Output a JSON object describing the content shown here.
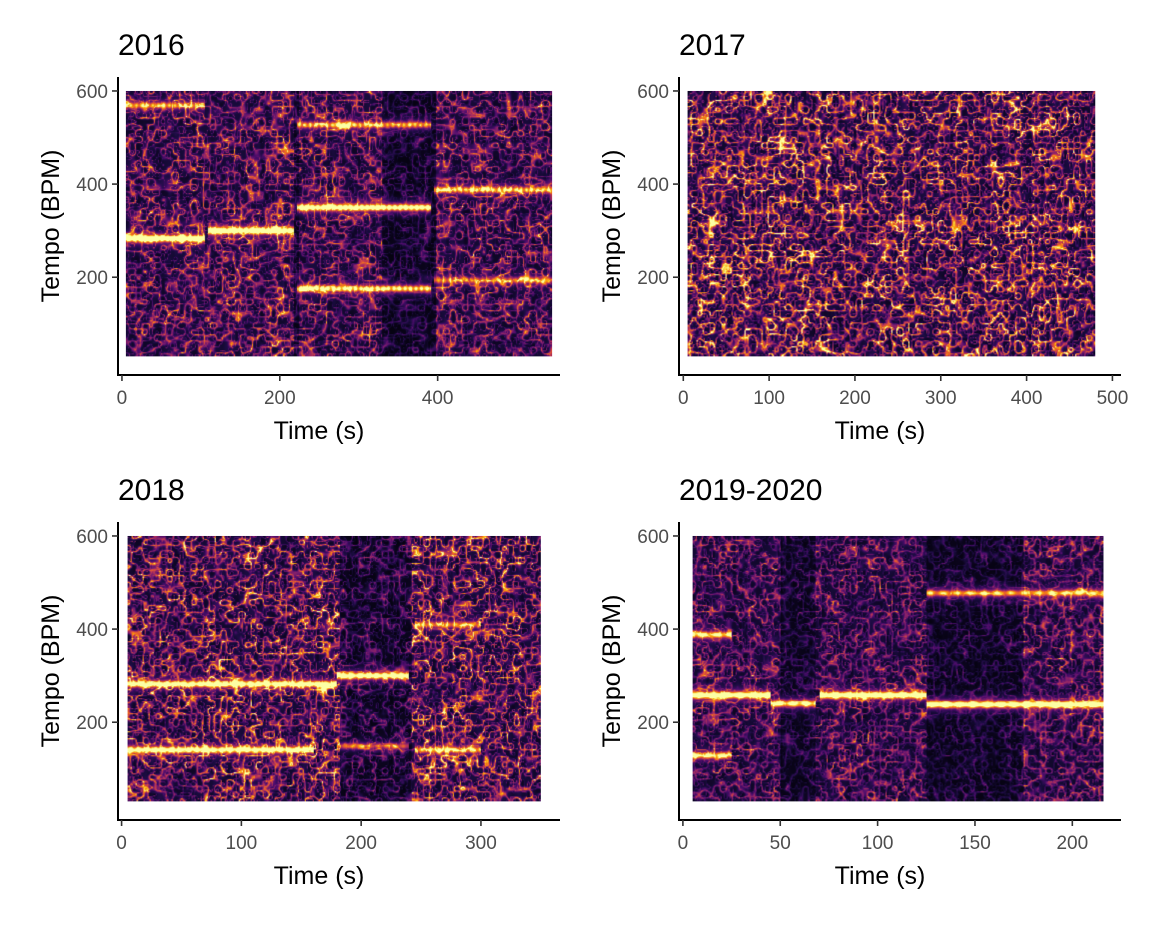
{
  "chart_data": [
    {
      "type": "heatmap",
      "title": "2016",
      "xlabel": "Time (s)",
      "ylabel": "Tempo (BPM)",
      "xlim": [
        -5,
        555
      ],
      "ylim": [
        -10,
        630
      ],
      "data_x_range": [
        5,
        545
      ],
      "data_y_range": [
        30,
        600
      ],
      "xticks": [
        0,
        200,
        400
      ],
      "yticks": [
        200,
        400,
        600
      ],
      "colormap": [
        "#000004",
        "#1b0c41",
        "#4a0c6b",
        "#781c6d",
        "#a52c60",
        "#cf4446",
        "#ed6925",
        "#fb9b06",
        "#f7d13d",
        "#fcffa4"
      ],
      "background_intensity": 0.34,
      "seed": 11,
      "segments": [
        {
          "t": [
            5,
            105
          ],
          "tempo": 283,
          "strength": 1.0
        },
        {
          "t": [
            108,
            218
          ],
          "tempo": 300,
          "strength": 1.0
        },
        {
          "t": [
            222,
            392
          ],
          "tempo": 350,
          "strength": 0.9
        },
        {
          "t": [
            222,
            392
          ],
          "tempo": 175,
          "strength": 0.7
        },
        {
          "t": [
            222,
            392
          ],
          "tempo": 528,
          "strength": 0.55
        },
        {
          "t": [
            5,
            105
          ],
          "tempo": 570,
          "strength": 0.55
        },
        {
          "t": [
            396,
            545
          ],
          "tempo": 388,
          "strength": 0.6
        },
        {
          "t": [
            396,
            545
          ],
          "tempo": 193,
          "strength": 0.45
        }
      ],
      "dark_bands": [
        [
          218,
          224
        ],
        [
          330,
          392
        ],
        [
          392,
          398
        ]
      ]
    },
    {
      "type": "heatmap",
      "title": "2017",
      "xlabel": "Time (s)",
      "ylabel": "Tempo (BPM)",
      "xlim": [
        -5,
        510
      ],
      "ylim": [
        -10,
        630
      ],
      "data_x_range": [
        5,
        480
      ],
      "data_y_range": [
        30,
        600
      ],
      "xticks": [
        0,
        100,
        200,
        300,
        400,
        500
      ],
      "yticks": [
        200,
        400,
        600
      ],
      "colormap": [
        "#000004",
        "#1b0c41",
        "#4a0c6b",
        "#781c6d",
        "#a52c60",
        "#cf4446",
        "#ed6925",
        "#fb9b06",
        "#f7d13d",
        "#fcffa4"
      ],
      "background_intensity": 0.52,
      "seed": 27,
      "segments": [],
      "dark_bands": []
    },
    {
      "type": "heatmap",
      "title": "2018",
      "xlabel": "Time (s)",
      "ylabel": "Tempo (BPM)",
      "xlim": [
        -3,
        366
      ],
      "ylim": [
        -10,
        630
      ],
      "data_x_range": [
        5,
        350
      ],
      "data_y_range": [
        30,
        600
      ],
      "xticks": [
        0,
        100,
        200,
        300
      ],
      "yticks": [
        200,
        400,
        600
      ],
      "colormap": [
        "#000004",
        "#1b0c41",
        "#4a0c6b",
        "#781c6d",
        "#a52c60",
        "#cf4446",
        "#ed6925",
        "#fb9b06",
        "#f7d13d",
        "#fcffa4"
      ],
      "background_intensity": 0.46,
      "seed": 43,
      "segments": [
        {
          "t": [
            5,
            180
          ],
          "tempo": 282,
          "strength": 0.85
        },
        {
          "t": [
            180,
            240
          ],
          "tempo": 300,
          "strength": 0.95
        },
        {
          "t": [
            5,
            160
          ],
          "tempo": 140,
          "strength": 0.85
        },
        {
          "t": [
            180,
            240
          ],
          "tempo": 148,
          "strength": 0.4
        },
        {
          "t": [
            245,
            300
          ],
          "tempo": 140,
          "strength": 0.55
        },
        {
          "t": [
            245,
            300
          ],
          "tempo": 410,
          "strength": 0.5
        }
      ],
      "dark_bands": [
        [
          182,
          242
        ]
      ]
    },
    {
      "type": "heatmap",
      "title": "2019-2020",
      "xlabel": "Time (s)",
      "ylabel": "Tempo (BPM)",
      "xlim": [
        -2,
        225
      ],
      "ylim": [
        -10,
        630
      ],
      "data_x_range": [
        5,
        216
      ],
      "data_y_range": [
        30,
        600
      ],
      "xticks": [
        0,
        50,
        100,
        150,
        200
      ],
      "yticks": [
        200,
        400,
        600
      ],
      "colormap": [
        "#000004",
        "#1b0c41",
        "#4a0c6b",
        "#781c6d",
        "#a52c60",
        "#cf4446",
        "#ed6925",
        "#fb9b06",
        "#f7d13d",
        "#fcffa4"
      ],
      "background_intensity": 0.3,
      "seed": 61,
      "segments": [
        {
          "t": [
            5,
            45
          ],
          "tempo": 258,
          "strength": 1.0
        },
        {
          "t": [
            45,
            68
          ],
          "tempo": 240,
          "strength": 0.8
        },
        {
          "t": [
            70,
            125
          ],
          "tempo": 258,
          "strength": 1.0
        },
        {
          "t": [
            125,
            216
          ],
          "tempo": 238,
          "strength": 1.0
        },
        {
          "t": [
            5,
            25
          ],
          "tempo": 128,
          "strength": 0.7
        },
        {
          "t": [
            5,
            25
          ],
          "tempo": 388,
          "strength": 0.7
        },
        {
          "t": [
            125,
            216
          ],
          "tempo": 478,
          "strength": 0.6
        }
      ],
      "dark_bands": [
        [
          50,
          68
        ],
        [
          125,
          175
        ]
      ]
    }
  ]
}
